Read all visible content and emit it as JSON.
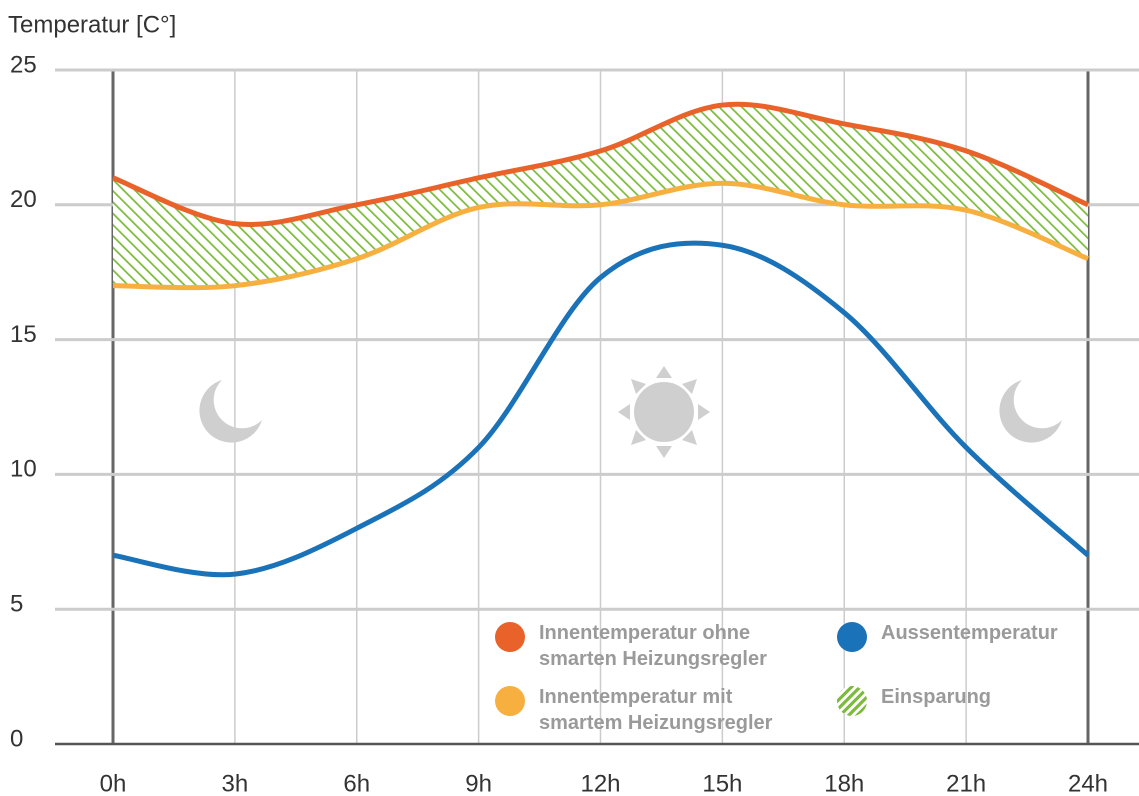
{
  "chart_data": {
    "type": "line",
    "title": "Temperatur [C°]",
    "x": [
      0,
      3,
      6,
      9,
      12,
      15,
      18,
      21,
      24
    ],
    "series": [
      {
        "name": "Innentemperatur ohne smarten Heizungsregler",
        "color": "#e8622a",
        "values": [
          21,
          19.3,
          20,
          21,
          22,
          23.7,
          23,
          22,
          20
        ]
      },
      {
        "name": "Innentemperatur mit smartem Heizungsregler",
        "color": "#f7b040",
        "values": [
          17,
          17,
          18,
          19.9,
          20,
          20.8,
          20,
          19.8,
          18
        ]
      },
      {
        "name": "Aussentemperatur",
        "color": "#1a72b8",
        "values": [
          7,
          6.3,
          8,
          11,
          17.3,
          18.5,
          16,
          11,
          7
        ]
      }
    ],
    "area": {
      "name": "Einsparung",
      "color": "#7dbb3c",
      "hatch": true
    },
    "xlim": [
      0,
      24
    ],
    "xticks": [
      {
        "value": 0,
        "label": "0h"
      },
      {
        "value": 3,
        "label": "3h"
      },
      {
        "value": 6,
        "label": "6h"
      },
      {
        "value": 9,
        "label": "9h"
      },
      {
        "value": 12,
        "label": "12h"
      },
      {
        "value": 15,
        "label": "15h"
      },
      {
        "value": 18,
        "label": "18h"
      },
      {
        "value": 21,
        "label": "21h"
      },
      {
        "value": 24,
        "label": "24h"
      }
    ],
    "ylim": [
      0,
      25
    ],
    "yticks": [
      0,
      5,
      10,
      15,
      20,
      25
    ],
    "grid": true
  }
}
